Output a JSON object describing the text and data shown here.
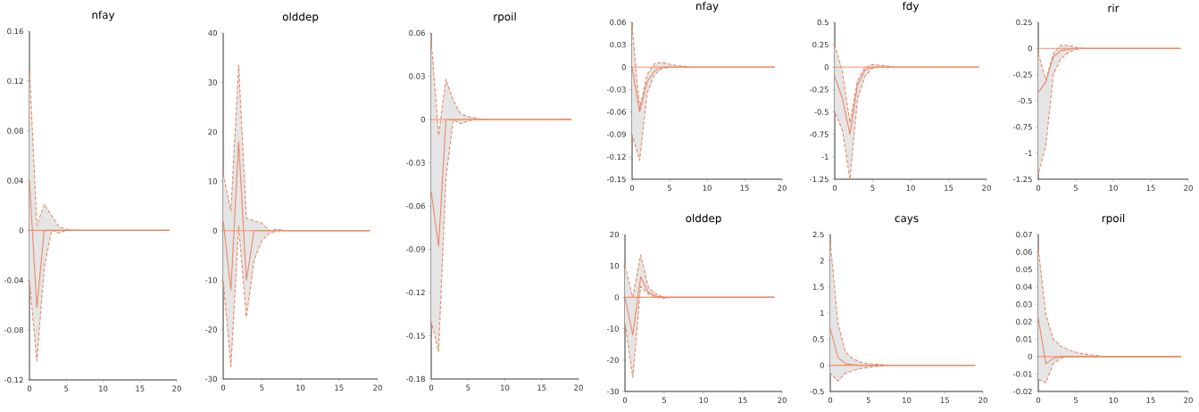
{
  "chart_data": [
    {
      "type": "line",
      "title": "nfay",
      "x": [
        0,
        1,
        2,
        3,
        4,
        5,
        6,
        7,
        8,
        9,
        10,
        11,
        12,
        13,
        14,
        15,
        16,
        17,
        18,
        19
      ],
      "xlim": [
        0,
        20
      ],
      "xticks": [
        0,
        5,
        10,
        15,
        20
      ],
      "ylim": [
        -0.12,
        0.16
      ],
      "yticks": [
        -0.12,
        -0.08,
        -0.04,
        0,
        0.04,
        0.08,
        0.12,
        0.16
      ],
      "series": [
        {
          "color": "#e8896a",
          "values": [
            0.04,
            -0.062,
            0,
            0,
            0,
            0,
            0,
            0,
            0,
            0,
            0,
            0,
            0,
            0,
            0,
            0,
            0,
            0,
            0,
            0
          ],
          "upper": [
            0.13,
            0.004,
            0.021,
            0.012,
            0.003,
            0.001,
            0,
            0,
            0,
            0,
            0,
            0,
            0,
            0,
            0,
            0,
            0,
            0,
            0,
            0
          ],
          "lower": [
            -0.04,
            -0.105,
            -0.03,
            0,
            -0.002,
            0,
            0,
            0,
            0,
            0,
            0,
            0,
            0,
            0,
            0,
            0,
            0,
            0,
            0,
            0
          ]
        }
      ],
      "ref_lines": [
        {
          "axis": "y",
          "value": 0,
          "color": "#fc8d62"
        }
      ]
    },
    {
      "type": "line",
      "title": "olddep",
      "x": [
        0,
        1,
        2,
        3,
        4,
        5,
        6,
        7,
        8,
        9,
        10,
        11,
        12,
        13,
        14,
        15,
        16,
        17,
        18,
        19
      ],
      "xlim": [
        0,
        20
      ],
      "xticks": [
        0,
        5,
        10,
        15,
        20
      ],
      "ylim": [
        -30,
        40
      ],
      "yticks": [
        -30,
        -20,
        -10,
        0,
        10,
        20,
        30,
        40
      ],
      "series": [
        {
          "color": "#e8896a",
          "values": [
            2,
            -12,
            18,
            -10,
            0,
            0,
            0,
            0,
            0,
            0,
            0,
            0,
            0,
            0,
            0,
            0,
            0,
            0,
            0,
            0
          ],
          "upper": [
            11.5,
            4,
            33.5,
            2.5,
            2,
            1.5,
            0,
            0.3,
            0,
            0,
            0,
            0,
            0,
            0,
            0,
            0,
            0,
            0,
            0,
            0
          ],
          "lower": [
            -10,
            -27.5,
            1,
            -17.5,
            -6,
            -2,
            -0.5,
            0,
            0,
            0,
            0,
            0,
            0,
            0,
            0,
            0,
            0,
            0,
            0,
            0
          ]
        }
      ],
      "ref_lines": [
        {
          "axis": "y",
          "value": 0,
          "color": "#fc8d62"
        }
      ]
    },
    {
      "type": "line",
      "title": "rpoil",
      "x": [
        0,
        1,
        2,
        3,
        4,
        5,
        6,
        7,
        8,
        9,
        10,
        11,
        12,
        13,
        14,
        15,
        16,
        17,
        18,
        19
      ],
      "xlim": [
        0,
        20
      ],
      "xticks": [
        0,
        5,
        10,
        15,
        20
      ],
      "ylim": [
        -0.18,
        0.06
      ],
      "yticks": [
        -0.18,
        -0.15,
        -0.12,
        -0.09,
        -0.06,
        -0.03,
        0,
        0.03,
        0.06
      ],
      "series": [
        {
          "color": "#e8896a",
          "values": [
            -0.05,
            -0.088,
            0,
            0,
            0,
            0,
            0,
            0,
            0,
            0,
            0,
            0,
            0,
            0,
            0,
            0,
            0,
            0,
            0,
            0
          ],
          "upper": [
            0.055,
            -0.011,
            0.028,
            0.013,
            0.004,
            0.002,
            0.001,
            0,
            0,
            0,
            0,
            0,
            0,
            0,
            0,
            0,
            0,
            0,
            0,
            0
          ],
          "lower": [
            -0.14,
            -0.161,
            -0.04,
            0,
            -0.003,
            -0.001,
            0,
            0,
            0,
            0,
            0,
            0,
            0,
            0,
            0,
            0,
            0,
            0,
            0,
            0
          ]
        }
      ],
      "ref_lines": [
        {
          "axis": "y",
          "value": 0,
          "color": "#fc8d62"
        }
      ]
    },
    {
      "type": "line",
      "title": "nfay",
      "x": [
        0,
        1,
        2,
        3,
        4,
        5,
        6,
        7,
        8,
        9,
        10,
        11,
        12,
        13,
        14,
        15,
        16,
        17,
        18,
        19
      ],
      "xlim": [
        0,
        20
      ],
      "xticks": [
        0,
        5,
        10,
        15,
        20
      ],
      "ylim": [
        -0.15,
        0.06
      ],
      "yticks": [
        -0.15,
        -0.12,
        -0.09,
        -0.06,
        -0.03,
        0,
        0.03,
        0.06
      ],
      "series": [
        {
          "color": "#e8896a",
          "values": [
            0,
            -0.06,
            -0.02,
            -0.005,
            0,
            0,
            0,
            0,
            0,
            0,
            0,
            0,
            0,
            0,
            0,
            0,
            0,
            0,
            0,
            0
          ],
          "upper": [
            0.055,
            -0.055,
            -0.01,
            0.005,
            0.006,
            0.004,
            0.002,
            0.001,
            0,
            0,
            0,
            0,
            0,
            0,
            0,
            0,
            0,
            0,
            0,
            0
          ],
          "lower": [
            -0.09,
            -0.125,
            -0.035,
            -0.01,
            -0.002,
            0,
            0,
            0,
            0,
            0,
            0,
            0,
            0,
            0,
            0,
            0,
            0,
            0,
            0,
            0
          ]
        }
      ],
      "ref_lines": [
        {
          "axis": "y",
          "value": 0,
          "color": "#fc8d62"
        }
      ]
    },
    {
      "type": "line",
      "title": "fdy",
      "x": [
        0,
        1,
        2,
        3,
        4,
        5,
        6,
        7,
        8,
        9,
        10,
        11,
        12,
        13,
        14,
        15,
        16,
        17,
        18,
        19
      ],
      "xlim": [
        0,
        20
      ],
      "xticks": [
        0,
        5,
        10,
        15,
        20
      ],
      "ylim": [
        -1.25,
        0.5
      ],
      "yticks": [
        -1.25,
        -1,
        -0.75,
        -0.5,
        -0.25,
        0,
        0.25,
        0.5
      ],
      "series": [
        {
          "color": "#e8896a",
          "values": [
            -0.1,
            -0.35,
            -0.75,
            -0.2,
            -0.03,
            0,
            0,
            0,
            0,
            0,
            0,
            0,
            0,
            0,
            0,
            0,
            0,
            0,
            0,
            0
          ],
          "upper": [
            0.25,
            -0.05,
            -0.62,
            -0.15,
            0,
            0.03,
            0.02,
            0.01,
            0,
            0,
            0,
            0,
            0,
            0,
            0,
            0,
            0,
            0,
            0,
            0
          ],
          "lower": [
            -0.5,
            -0.7,
            -1.25,
            -0.35,
            -0.1,
            -0.01,
            0,
            0,
            0,
            0,
            0,
            0,
            0,
            0,
            0,
            0,
            0,
            0,
            0,
            0
          ]
        }
      ],
      "ref_lines": [
        {
          "axis": "y",
          "value": 0,
          "color": "#fc8d62"
        }
      ]
    },
    {
      "type": "line",
      "title": "rir",
      "x": [
        0,
        1,
        2,
        3,
        4,
        5,
        6,
        7,
        8,
        9,
        10,
        11,
        12,
        13,
        14,
        15,
        16,
        17,
        18,
        19
      ],
      "xlim": [
        0,
        20
      ],
      "xticks": [
        0,
        5,
        10,
        15,
        20
      ],
      "ylim": [
        -1.25,
        0.25
      ],
      "yticks": [
        -1.25,
        -1,
        -0.75,
        -0.5,
        -0.25,
        0,
        0.25
      ],
      "series": [
        {
          "color": "#e8896a",
          "values": [
            -0.42,
            -0.32,
            -0.08,
            -0.02,
            -0.01,
            0,
            0,
            0,
            0,
            0,
            0,
            0,
            0,
            0,
            0,
            0,
            0,
            0,
            0,
            0
          ],
          "upper": [
            -0.05,
            -0.3,
            -0.05,
            0.03,
            0.03,
            0.01,
            0,
            0,
            0,
            0,
            0,
            0,
            0,
            0,
            0,
            0,
            0,
            0,
            0,
            0
          ],
          "lower": [
            -1.2,
            -0.93,
            -0.25,
            -0.1,
            -0.04,
            -0.01,
            0,
            0,
            0,
            0,
            0,
            0,
            0,
            0,
            0,
            0,
            0,
            0,
            0,
            0
          ]
        }
      ],
      "ref_lines": [
        {
          "axis": "y",
          "value": 0,
          "color": "#fc8d62"
        }
      ]
    },
    {
      "type": "line",
      "title": "olddep",
      "x": [
        0,
        1,
        2,
        3,
        4,
        5,
        6,
        7,
        8,
        9,
        10,
        11,
        12,
        13,
        14,
        15,
        16,
        17,
        18,
        19
      ],
      "xlim": [
        0,
        20
      ],
      "xticks": [
        0,
        5,
        10,
        15,
        20
      ],
      "ylim": [
        -30,
        20
      ],
      "yticks": [
        -30,
        -20,
        -10,
        0,
        10,
        20
      ],
      "series": [
        {
          "color": "#e8896a",
          "values": [
            0,
            -12,
            6.5,
            1.5,
            0.3,
            0,
            0,
            0,
            0,
            0,
            0,
            0,
            0,
            0,
            0,
            0,
            0,
            0,
            0,
            0
          ],
          "upper": [
            10,
            0,
            13.5,
            3,
            1,
            0,
            0,
            0,
            0,
            0,
            0,
            0,
            0,
            0,
            0,
            0,
            0,
            0,
            0,
            0
          ],
          "lower": [
            -8,
            -25.5,
            3.5,
            1,
            0,
            -0.3,
            0,
            0,
            0,
            0,
            0,
            0,
            0,
            0,
            0,
            0,
            0,
            0,
            0,
            0
          ]
        }
      ],
      "ref_lines": [
        {
          "axis": "y",
          "value": 0,
          "color": "#fc8d62"
        }
      ]
    },
    {
      "type": "line",
      "title": "cays",
      "x": [
        0,
        1,
        2,
        3,
        4,
        5,
        6,
        7,
        8,
        9,
        10,
        11,
        12,
        13,
        14,
        15,
        16,
        17,
        18,
        19
      ],
      "xlim": [
        0,
        20
      ],
      "xticks": [
        0,
        5,
        10,
        15,
        20
      ],
      "ylim": [
        -0.5,
        2.5
      ],
      "yticks": [
        -0.5,
        0,
        0.5,
        1,
        1.5,
        2,
        2.5
      ],
      "series": [
        {
          "color": "#e8896a",
          "values": [
            0.7,
            0.15,
            0.03,
            0.01,
            0,
            0,
            0,
            0,
            0,
            0,
            0,
            0,
            0,
            0,
            0,
            0,
            0,
            0,
            0,
            0
          ],
          "upper": [
            2.35,
            0.8,
            0.25,
            0.12,
            0.06,
            0.03,
            0.02,
            0.01,
            0,
            0,
            0,
            0,
            0,
            0,
            0,
            0,
            0,
            0,
            0,
            0
          ],
          "lower": [
            -0.15,
            -0.3,
            -0.15,
            -0.1,
            -0.06,
            -0.04,
            -0.02,
            -0.01,
            0,
            0,
            0,
            0,
            0,
            0,
            0,
            0,
            0,
            0,
            0,
            0
          ]
        }
      ],
      "ref_lines": [
        {
          "axis": "y",
          "value": 0,
          "color": "#fc8d62"
        }
      ]
    },
    {
      "type": "line",
      "title": "rpoil",
      "x": [
        0,
        1,
        2,
        3,
        4,
        5,
        6,
        7,
        8,
        9,
        10,
        11,
        12,
        13,
        14,
        15,
        16,
        17,
        18,
        19
      ],
      "xlim": [
        0,
        20
      ],
      "xticks": [
        0,
        5,
        10,
        15,
        20
      ],
      "ylim": [
        -0.02,
        0.07
      ],
      "yticks": [
        -0.02,
        -0.01,
        0,
        0.01,
        0.02,
        0.03,
        0.04,
        0.05,
        0.06,
        0.07
      ],
      "series": [
        {
          "color": "#e8896a",
          "values": [
            0.022,
            -0.004,
            -0.001,
            0,
            0,
            0,
            0,
            0,
            0,
            0,
            0,
            0,
            0,
            0,
            0,
            0,
            0,
            0,
            0,
            0
          ],
          "upper": [
            0.062,
            0.024,
            0.01,
            0.006,
            0.004,
            0.0025,
            0.0015,
            0.001,
            0.0005,
            0,
            0,
            0,
            0,
            0,
            0,
            0,
            0,
            0,
            0,
            0
          ],
          "lower": [
            -0.013,
            -0.015,
            -0.004,
            -0.001,
            0,
            0,
            0,
            0,
            0,
            0,
            0,
            0,
            0,
            0,
            0,
            0,
            0,
            0,
            0,
            0
          ]
        }
      ],
      "ref_lines": [
        {
          "axis": "y",
          "value": 0,
          "color": "#fc8d62"
        }
      ]
    }
  ]
}
